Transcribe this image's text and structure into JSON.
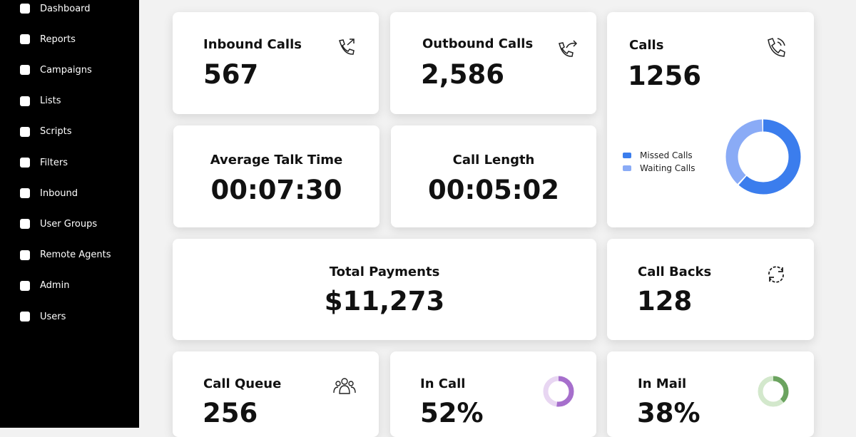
{
  "sidebar": {
    "items": [
      "Dashboard",
      "Reports",
      "Campaigns",
      "Lists",
      "Scripts",
      "Filters",
      "Inbound",
      "User Groups",
      "Remote Agents",
      "Admin",
      "Users"
    ]
  },
  "cards": {
    "inbound_calls": {
      "title": "Inbound Calls",
      "value": "567"
    },
    "outbound_calls": {
      "title": "Outbound Calls",
      "value": "2,586"
    },
    "calls": {
      "title": "Calls",
      "value": "1256",
      "chart": {
        "type": "pie",
        "series": [
          {
            "name": "Missed Calls",
            "color": "#3b7ded",
            "value": 62
          },
          {
            "name": "Waiting Calls",
            "color": "#8aabf6",
            "value": 38
          }
        ]
      }
    },
    "average_talk_time": {
      "title": "Average Talk Time",
      "value": "00:07:30"
    },
    "call_length": {
      "title": "Call Length",
      "value": "00:05:02"
    },
    "total_payments": {
      "title": "Total Payments",
      "value": "$11,273"
    },
    "call_backs": {
      "title": "Call Backs",
      "value": "128"
    },
    "call_queue": {
      "title": "Call Queue",
      "value": "256"
    },
    "in_call": {
      "title": "In Call",
      "value": 52,
      "label": "52%",
      "color": "#a66fcc",
      "track": "#e8d6f2"
    },
    "in_mail": {
      "title": "In Mail",
      "value": 38,
      "label": "38%",
      "color": "#6ba35f",
      "track": "#d3e8cc"
    }
  }
}
